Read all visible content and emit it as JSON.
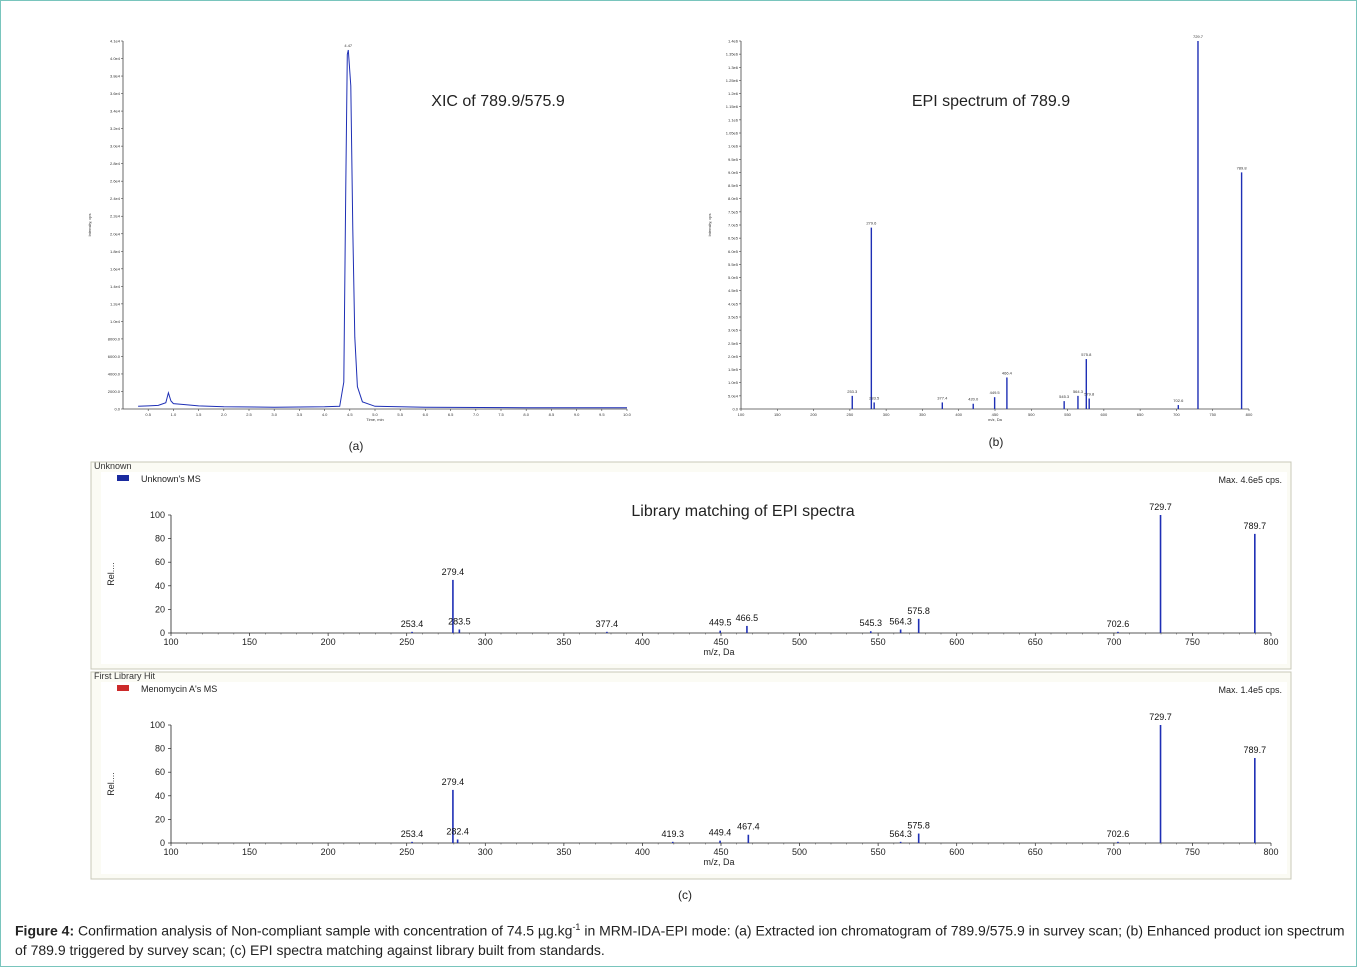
{
  "caption": {
    "label": "Figure 4:",
    "text_before_sup": " Confirmation analysis of Non-compliant sample with concentration of 74.5 µg.kg",
    "sup": "-1",
    "text_after_sup": " in MRM-IDA-EPI mode: (a) Extracted ion chromatogram of 789.9/575.9 in survey scan; (b) Enhanced product ion spectrum of 789.9 triggered by survey scan; (c) EPI spectra matching against library built from standards."
  },
  "colors": {
    "spectrum_line": "#1e2fb5",
    "unknown_legend": "#1a2a9e",
    "library_legend": "#cc2a2a",
    "panel_border": "#c8c8b8",
    "frame_border": "#79c5bd"
  },
  "chart_data": [
    {
      "id": "a",
      "type": "line",
      "label": "(a)",
      "title": "XIC of 789.9/575.9",
      "xlabel": "Time, min",
      "ylabel": "Intensity, cps",
      "xlim": [
        0,
        10
      ],
      "ylim": [
        0,
        41000
      ],
      "x_ticks": [
        "0.5",
        "1.0",
        "1.5",
        "2.0",
        "2.5",
        "3.0",
        "3.5",
        "4.0",
        "4.5",
        "5.0",
        "5.5",
        "6.0",
        "6.5",
        "7.0",
        "7.5",
        "8.0",
        "8.5",
        "9.0",
        "9.5",
        "10.0"
      ],
      "y_ticks": [
        "0.0",
        "2000.0",
        "4000.0",
        "6000.0",
        "8000.0",
        "1.0e4",
        "1.2e4",
        "1.4e4",
        "1.6e4",
        "1.8e4",
        "2.0e4",
        "2.2e4",
        "2.4e4",
        "2.6e4",
        "2.8e4",
        "3.0e4",
        "3.2e4",
        "3.4e4",
        "3.6e4",
        "3.8e4",
        "4.0e4",
        "4.1e4"
      ],
      "peak_label": "4.47",
      "points": [
        [
          0.3,
          300
        ],
        [
          0.5,
          350
        ],
        [
          0.7,
          400
        ],
        [
          0.85,
          700
        ],
        [
          0.9,
          1800
        ],
        [
          0.95,
          900
        ],
        [
          1.0,
          600
        ],
        [
          1.2,
          500
        ],
        [
          1.5,
          350
        ],
        [
          2.0,
          250
        ],
        [
          3.0,
          200
        ],
        [
          4.0,
          250
        ],
        [
          4.3,
          300
        ],
        [
          4.38,
          3000
        ],
        [
          4.42,
          25000
        ],
        [
          4.45,
          39500
        ],
        [
          4.47,
          40000
        ],
        [
          4.52,
          36000
        ],
        [
          4.56,
          20000
        ],
        [
          4.6,
          8000
        ],
        [
          4.65,
          2500
        ],
        [
          4.75,
          800
        ],
        [
          5.0,
          300
        ],
        [
          6.0,
          200
        ],
        [
          8.0,
          150
        ],
        [
          10.0,
          150
        ]
      ]
    },
    {
      "id": "b",
      "type": "bar",
      "label": "(b)",
      "title": "EPI spectrum of 789.9",
      "xlabel": "m/z, Da",
      "ylabel": "Intensity, cps",
      "xlim": [
        100,
        800
      ],
      "ylim": [
        0,
        1400000
      ],
      "x_ticks": [
        "100",
        "150",
        "200",
        "250",
        "300",
        "350",
        "400",
        "450",
        "500",
        "550",
        "600",
        "650",
        "700",
        "750",
        "800"
      ],
      "y_ticks": [
        "0.0",
        "5.0e4",
        "1.0e5",
        "1.5e5",
        "2.0e5",
        "2.5e5",
        "3.0e5",
        "3.5e5",
        "4.0e5",
        "4.5e5",
        "5.0e5",
        "5.5e5",
        "6.0e5",
        "6.5e5",
        "7.0e5",
        "7.5e5",
        "8.0e5",
        "8.5e5",
        "9.0e5",
        "9.5e5",
        "1.0e6",
        "1.05e6",
        "1.1e6",
        "1.15e6",
        "1.2e6",
        "1.25e6",
        "1.3e6",
        "1.35e6",
        "1.4e6"
      ],
      "peaks": [
        {
          "mz": 253.3,
          "value": 50000,
          "label": "253.3"
        },
        {
          "mz": 279.6,
          "value": 690000,
          "label": "279.6"
        },
        {
          "mz": 283.5,
          "value": 25000,
          "label": "283.5"
        },
        {
          "mz": 377.4,
          "value": 25000,
          "label": "377.4"
        },
        {
          "mz": 420.0,
          "value": 20000,
          "label": "420.0"
        },
        {
          "mz": 449.5,
          "value": 45000,
          "label": "449.5"
        },
        {
          "mz": 466.4,
          "value": 120000,
          "label": "466.4"
        },
        {
          "mz": 545.3,
          "value": 30000,
          "label": "545.3"
        },
        {
          "mz": 564.3,
          "value": 50000,
          "label": "564.3"
        },
        {
          "mz": 575.8,
          "value": 190000,
          "label": "575.8"
        },
        {
          "mz": 579.8,
          "value": 40000,
          "label": "579.8"
        },
        {
          "mz": 702.6,
          "value": 15000,
          "label": "702.6"
        },
        {
          "mz": 729.7,
          "value": 1400000,
          "label": "729.7"
        },
        {
          "mz": 789.8,
          "value": 900000,
          "label": "789.8"
        }
      ]
    },
    {
      "id": "c-unknown",
      "type": "bar",
      "panel_title": "Unknown",
      "legend": "Unknown's MS",
      "max_label": "Max. 4.6e5 cps.",
      "title": "Library matching of EPI spectra",
      "xlabel": "m/z, Da",
      "ylabel": "Rel....",
      "xlim": [
        100,
        800
      ],
      "ylim": [
        0,
        100
      ],
      "x_ticks": [
        "100",
        "150",
        "200",
        "250",
        "300",
        "350",
        "400",
        "450",
        "500",
        "550",
        "600",
        "650",
        "700",
        "750",
        "800"
      ],
      "y_ticks": [
        "0",
        "20",
        "40",
        "60",
        "80",
        "100"
      ],
      "peaks": [
        {
          "mz": 253.4,
          "value": 1,
          "label": "253.4"
        },
        {
          "mz": 279.4,
          "value": 45,
          "label": "279.4"
        },
        {
          "mz": 283.5,
          "value": 3,
          "label": "283.5"
        },
        {
          "mz": 377.4,
          "value": 1,
          "label": "377.4"
        },
        {
          "mz": 449.5,
          "value": 2,
          "label": "449.5"
        },
        {
          "mz": 466.5,
          "value": 6,
          "label": "466.5"
        },
        {
          "mz": 545.3,
          "value": 1.5,
          "label": "545.3"
        },
        {
          "mz": 564.3,
          "value": 3,
          "label": "564.3"
        },
        {
          "mz": 575.8,
          "value": 12,
          "label": "575.8"
        },
        {
          "mz": 702.6,
          "value": 1,
          "label": "702.6"
        },
        {
          "mz": 729.7,
          "value": 100,
          "label": "729.7"
        },
        {
          "mz": 789.7,
          "value": 84,
          "label": "789.7"
        }
      ]
    },
    {
      "id": "c-library",
      "type": "bar",
      "panel_title": "First Library Hit",
      "legend": "Menomycin A's MS",
      "max_label": "Max. 1.4e5 cps.",
      "label": "(c)",
      "xlabel": "m/z, Da",
      "ylabel": "Rel....",
      "xlim": [
        100,
        800
      ],
      "ylim": [
        0,
        100
      ],
      "x_ticks": [
        "100",
        "150",
        "200",
        "250",
        "300",
        "350",
        "400",
        "450",
        "500",
        "550",
        "600",
        "650",
        "700",
        "750",
        "800"
      ],
      "y_ticks": [
        "0",
        "20",
        "40",
        "60",
        "80",
        "100"
      ],
      "peaks": [
        {
          "mz": 253.4,
          "value": 1,
          "label": "253.4"
        },
        {
          "mz": 279.4,
          "value": 45,
          "label": "279.4"
        },
        {
          "mz": 282.4,
          "value": 3,
          "label": "282.4"
        },
        {
          "mz": 419.3,
          "value": 1,
          "label": "419.3"
        },
        {
          "mz": 449.4,
          "value": 2,
          "label": "449.4"
        },
        {
          "mz": 467.4,
          "value": 7,
          "label": "467.4"
        },
        {
          "mz": 564.3,
          "value": 1,
          "label": "564.3"
        },
        {
          "mz": 575.8,
          "value": 8,
          "label": "575.8"
        },
        {
          "mz": 702.6,
          "value": 1,
          "label": "702.6"
        },
        {
          "mz": 729.7,
          "value": 100,
          "label": "729.7"
        },
        {
          "mz": 789.7,
          "value": 72,
          "label": "789.7"
        }
      ]
    }
  ]
}
